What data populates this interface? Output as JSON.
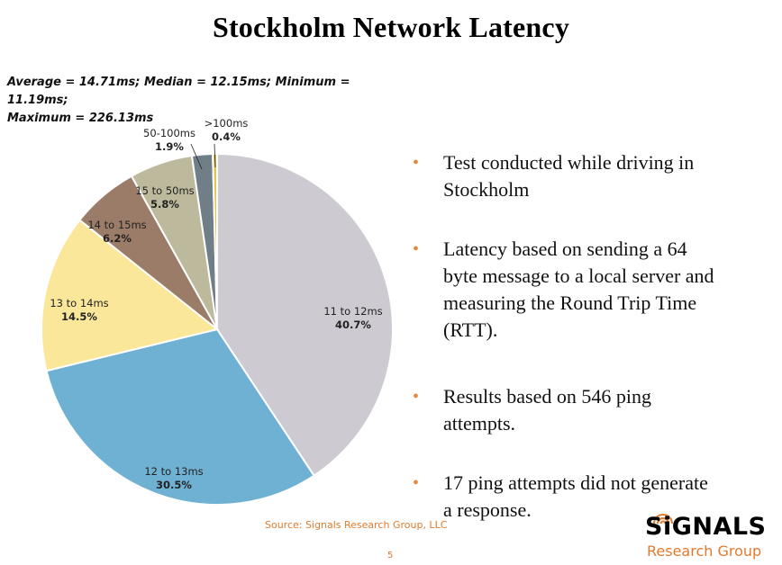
{
  "title": "Stockholm Network Latency",
  "stats": {
    "line1": "Average = 14.71ms; Median = 12.15ms; Minimum = 11.19ms;",
    "line2": "Maximum = 226.13ms"
  },
  "chart_data": {
    "type": "pie",
    "title": "Stockholm Network Latency",
    "slices": [
      {
        "label": "11 to 12ms",
        "value": 40.7,
        "pct_label": "40.7%",
        "color": "#cdcbd1"
      },
      {
        "label": "12 to 13ms",
        "value": 30.5,
        "pct_label": "30.5%",
        "color": "#6fb1d3"
      },
      {
        "label": "13 to 14ms",
        "value": 14.5,
        "pct_label": "14.5%",
        "color": "#fbe79a"
      },
      {
        "label": "14 to 15ms",
        "value": 6.2,
        "pct_label": "6.2%",
        "color": "#9b7c68"
      },
      {
        "label": "15 to 50ms",
        "value": 5.8,
        "pct_label": "5.8%",
        "color": "#bdb99d"
      },
      {
        "label": "50-100ms",
        "value": 1.9,
        "pct_label": "1.9%",
        "color": "#6f7e87"
      },
      {
        "label": ">100ms",
        "value": 0.4,
        "pct_label": "0.4%",
        "color": "#e8c24a"
      }
    ]
  },
  "bullets": [
    {
      "line1": "Test conducted while driving in",
      "line2": "Stockholm"
    },
    {
      "line1": "Latency based on sending a 64",
      "line2": "byte message to a local server and",
      "line3": "measuring the Round Trip Time",
      "line4": "(RTT)."
    },
    {
      "line1": "Results based on 546 ping",
      "line2": "attempts."
    },
    {
      "line1": "17 ping attempts did not generate",
      "line2": "a response."
    }
  ],
  "bullet_marker": "•",
  "source": "Source: Signals Research Group, LLC",
  "page_number": "5",
  "logo": {
    "main": "SiGNALS",
    "sub": "Research Group"
  },
  "colors": {
    "accent": "#e07b2e"
  }
}
